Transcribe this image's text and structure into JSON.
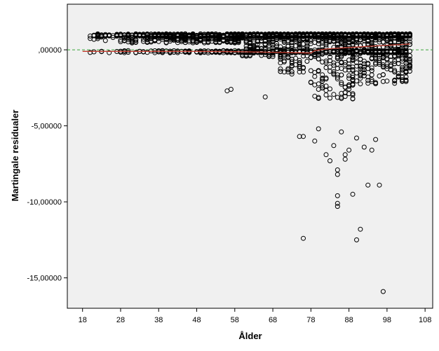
{
  "chart_data": {
    "type": "scatter",
    "xlabel": "Ålder",
    "ylabel": "Martingale residualer",
    "xlim": [
      14,
      110
    ],
    "ylim": [
      -17,
      3
    ],
    "xticks": [
      18,
      28,
      38,
      48,
      58,
      68,
      78,
      88,
      98,
      108
    ],
    "xtick_labels": [
      "18",
      "28",
      "38",
      "48",
      "58",
      "68",
      "78",
      "88",
      "98",
      "108"
    ],
    "yticks": [
      0,
      -5,
      -10,
      -15
    ],
    "ytick_labels": [
      ",00000",
      "-5,00000",
      "-10,00000",
      "-15,00000"
    ],
    "reference_line": {
      "y": 0,
      "color": "#3aa53a",
      "style": "dashed"
    },
    "fit_line": {
      "color": "#c0392b",
      "x": [
        18,
        28,
        38,
        48,
        58,
        68,
        74,
        78,
        79,
        82,
        86,
        90,
        94,
        98,
        104
      ],
      "y": [
        -0.1,
        -0.1,
        -0.1,
        -0.1,
        -0.12,
        -0.16,
        -0.19,
        -0.21,
        -0.05,
        0.05,
        0.12,
        0.18,
        0.24,
        0.3,
        0.38
      ]
    },
    "outliers": [
      {
        "x": 56,
        "y": -2.7
      },
      {
        "x": 57,
        "y": -2.6
      },
      {
        "x": 66,
        "y": -3.1
      },
      {
        "x": 75,
        "y": -5.7
      },
      {
        "x": 76,
        "y": -5.7
      },
      {
        "x": 76,
        "y": -12.4
      },
      {
        "x": 82,
        "y": -6.9
      },
      {
        "x": 83,
        "y": -7.3
      },
      {
        "x": 85,
        "y": -7.9
      },
      {
        "x": 85,
        "y": -8.2
      },
      {
        "x": 85,
        "y": -9.6
      },
      {
        "x": 85,
        "y": -10.1
      },
      {
        "x": 85,
        "y": -10.3
      },
      {
        "x": 87,
        "y": -6.9
      },
      {
        "x": 87,
        "y": -7.2
      },
      {
        "x": 89,
        "y": -9.5
      },
      {
        "x": 90,
        "y": -12.5
      },
      {
        "x": 91,
        "y": -11.8
      },
      {
        "x": 93,
        "y": -8.9
      },
      {
        "x": 94,
        "y": -6.6
      },
      {
        "x": 96,
        "y": -8.9
      },
      {
        "x": 97,
        "y": -15.9
      },
      {
        "x": 95,
        "y": -5.9
      },
      {
        "x": 92,
        "y": -6.4
      },
      {
        "x": 88,
        "y": -6.6
      },
      {
        "x": 84,
        "y": -6.3
      },
      {
        "x": 80,
        "y": -5.2
      },
      {
        "x": 79,
        "y": -6.0
      },
      {
        "x": 86,
        "y": -5.4
      },
      {
        "x": 90,
        "y": -5.8
      }
    ]
  }
}
